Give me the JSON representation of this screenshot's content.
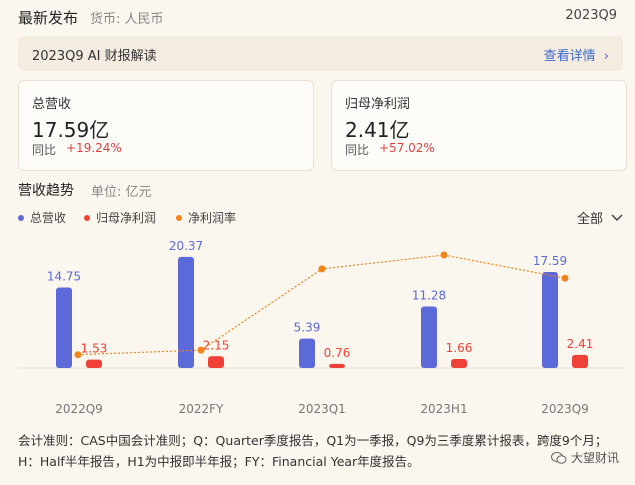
{
  "header": {
    "title": "最新发布",
    "currency": "货币: 人民币",
    "period": "2023Q9"
  },
  "ai_bar": {
    "text": "2023Q9 AI 财报解读",
    "link": "查看详情"
  },
  "cards": [
    {
      "label": "总营收",
      "value": "17.59亿",
      "yoy_label": "同比",
      "yoy_value": "+19.24%"
    },
    {
      "label": "归母净利润",
      "value": "2.41亿",
      "yoy_label": "同比",
      "yoy_value": "+57.02%"
    }
  ],
  "trend": {
    "title": "营收趋势",
    "unit": "单位: 亿元",
    "filter": "全部"
  },
  "colors": {
    "revenue": "#5b6ad8",
    "profit": "#ef4137",
    "margin": "#f2841c"
  },
  "chart_data": {
    "type": "bar",
    "categories": [
      "2022Q9",
      "2022FY",
      "2023Q1",
      "2023H1",
      "2023Q9"
    ],
    "series": [
      {
        "name": "总营收",
        "kind": "bar",
        "values": [
          14.75,
          20.37,
          5.39,
          11.28,
          17.59
        ],
        "labels": [
          "14.75",
          "20.37",
          "5.39",
          "11.28",
          "17.59"
        ]
      },
      {
        "name": "归母净利润",
        "kind": "bar",
        "values": [
          1.53,
          2.15,
          0.76,
          1.66,
          2.41
        ],
        "labels": [
          "1.53",
          "2.15",
          "0.76",
          "1.66",
          "2.41"
        ]
      },
      {
        "name": "净利润率",
        "kind": "line",
        "values": [
          10.4,
          10.6,
          14.1,
          14.7,
          13.7
        ]
      }
    ],
    "ylim": [
      0,
      22
    ]
  },
  "footnote": "会计准则：CAS中国会计准则；Q：Quarter季度报告，Q1为一季报，Q9为三季度累计报表，跨度9个月；H：Half半年报告，H1为中报即半年报；FY：Financial Year年度报告。",
  "watermark": "大望财讯"
}
